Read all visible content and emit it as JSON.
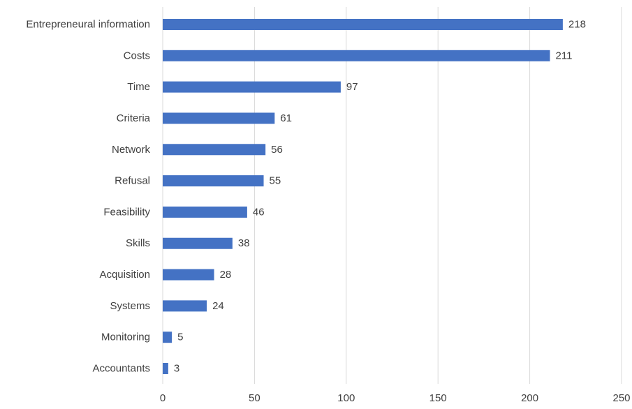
{
  "chart_data": {
    "type": "bar",
    "orientation": "horizontal",
    "title": "",
    "xlabel": "",
    "ylabel": "",
    "categories": [
      "Entrepreneural information",
      "Costs",
      "Time",
      "Criteria",
      "Network",
      "Refusal",
      "Feasibility",
      "Skills",
      "Acquisition",
      "Systems",
      "Monitoring",
      "Accountants"
    ],
    "values": [
      218,
      211,
      97,
      61,
      56,
      55,
      46,
      38,
      28,
      24,
      5,
      3
    ],
    "xlim": [
      0,
      250
    ],
    "xticks": [
      0,
      50,
      100,
      150,
      200,
      250
    ],
    "data_labels": true,
    "grid": "vertical",
    "legend": "none",
    "colors": {
      "bar": "#4472C4",
      "grid": "#d9d9d9",
      "text": "#404040"
    }
  }
}
